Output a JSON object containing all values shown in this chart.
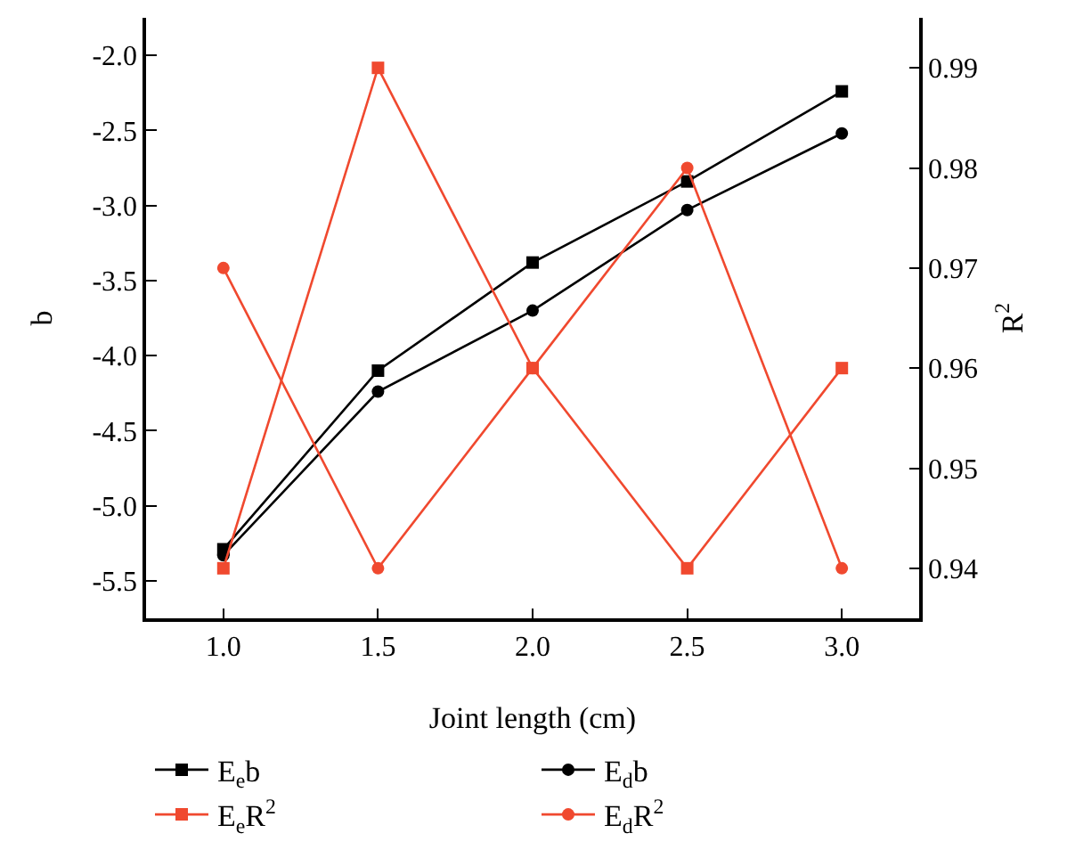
{
  "chart_data": {
    "type": "line",
    "xlabel": "Joint length (cm)",
    "ylabel": "b",
    "y2label": "R$^{2}$",
    "x": [
      1.0,
      1.5,
      2.0,
      2.5,
      3.0
    ],
    "xlim": [
      0.75,
      3.25
    ],
    "xticks": [
      {
        "value": 1,
        "label": "1.0"
      },
      {
        "value": 1.5,
        "label": "1.5"
      },
      {
        "value": 2,
        "label": "2.0"
      },
      {
        "value": 2.5,
        "label": "2.5"
      },
      {
        "value": 3,
        "label": "3.0"
      }
    ],
    "ylim": [
      -5.75,
      -1.75
    ],
    "yticks": [
      {
        "value": -5.5,
        "label": "-5.5"
      },
      {
        "value": -5,
        "label": "-5.0"
      },
      {
        "value": -4.5,
        "label": "-4.5"
      },
      {
        "value": -4,
        "label": "-4.0"
      },
      {
        "value": -3.5,
        "label": "-3.5"
      },
      {
        "value": -3,
        "label": "-3.0"
      },
      {
        "value": -2.5,
        "label": "-2.5"
      },
      {
        "value": -2,
        "label": "-2.0"
      }
    ],
    "y2lim": [
      0.935,
      0.995
    ],
    "y2ticks": [
      0.94,
      0.95,
      0.96,
      0.97,
      0.98,
      0.99
    ],
    "grid": false,
    "legend": "bottom",
    "line_style": "solid",
    "series": [
      {
        "name": "E$_{e}$b",
        "color": "#000000",
        "marker": "square",
        "values": [
          -5.29,
          -4.1,
          -3.38,
          -2.84,
          -2.24
        ]
      },
      {
        "name": "E$_{d}$b",
        "color": "#000000",
        "marker": "circle",
        "values": [
          -5.33,
          -4.24,
          -3.7,
          -3.03,
          -2.52
        ]
      },
      {
        "name": "E$_{e}$R$^{2}$",
        "color": "#f0492f",
        "marker": "square",
        "axis": "y2",
        "values": [
          0.94,
          0.99,
          0.96,
          0.94,
          0.96
        ]
      },
      {
        "name": "E$_{d}$R$^{2}$",
        "color": "#f0492f",
        "marker": "circle",
        "axis": "y2",
        "values": [
          0.97,
          0.94,
          0.96,
          0.98,
          0.94
        ]
      }
    ]
  }
}
